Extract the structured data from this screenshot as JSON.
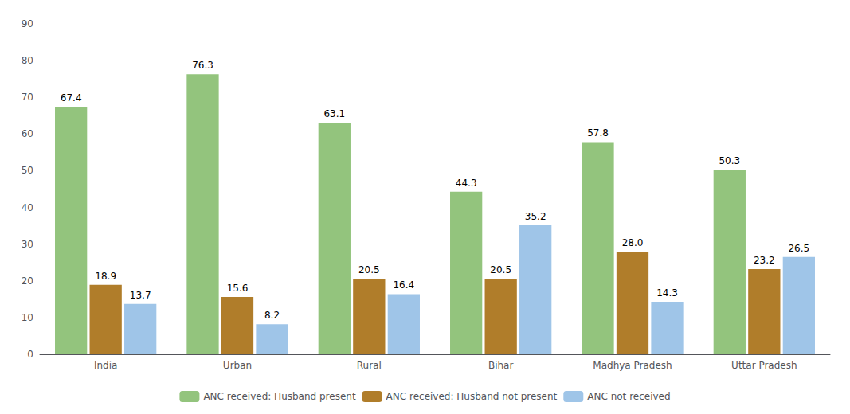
{
  "chart_data": {
    "type": "bar",
    "categories": [
      "India",
      "Urban",
      "Rural",
      "Bihar",
      "Madhya Pradesh",
      "Uttar Pradesh"
    ],
    "series": [
      {
        "name": "ANC received: Husband present",
        "color": "#93c47d",
        "values": [
          67.4,
          76.3,
          63.1,
          44.3,
          57.8,
          50.3
        ]
      },
      {
        "name": "ANC received: Husband not present",
        "color": "#b07d2a",
        "values": [
          18.9,
          15.6,
          20.5,
          20.5,
          28.0,
          23.2
        ],
        "value_labels": [
          "18.9",
          "15.6",
          "20.5",
          "20.5",
          "28.0",
          "23.2"
        ]
      },
      {
        "name": "ANC not received",
        "color": "#9fc5e8",
        "values": [
          13.7,
          8.2,
          16.4,
          35.2,
          14.3,
          26.5
        ]
      }
    ],
    "ylim": [
      0,
      90
    ],
    "yticks": [
      0,
      10,
      20,
      30,
      40,
      50,
      60,
      70,
      80,
      90
    ],
    "grid": false,
    "legend": "bottom",
    "data_labels": true
  }
}
